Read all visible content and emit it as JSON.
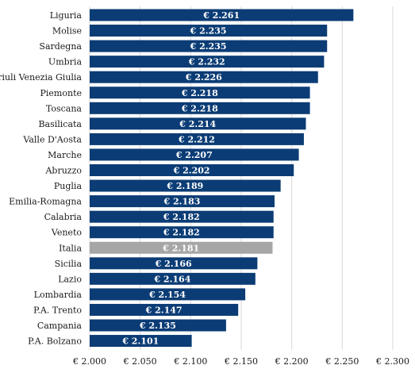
{
  "chart_data": {
    "type": "bar",
    "orientation": "horizontal",
    "title": "",
    "xlabel": "",
    "ylabel": "",
    "xlim": [
      2000,
      2300
    ],
    "grid": true,
    "bar_color": "#0b3c75",
    "highlight_color": "#a6a6a6",
    "highlight_category": "Italia",
    "x_ticks": [
      2000,
      2050,
      2100,
      2150,
      2200,
      2250,
      2300
    ],
    "x_tick_labels": [
      "€ 2.000",
      "€ 2.050",
      "€ 2.100",
      "€ 2.150",
      "€ 2.200",
      "€ 2.250",
      "€ 2.300"
    ],
    "categories": [
      "Liguria",
      "Molise",
      "Sardegna",
      "Umbria",
      "Friuli Venezia Giulia",
      "Piemonte",
      "Toscana",
      "Basilicata",
      "Valle D'Aosta",
      "Marche",
      "Abruzzo",
      "Puglia",
      "Emilia-Romagna",
      "Calabria",
      "Veneto",
      "Italia",
      "Sicilia",
      "Lazio",
      "Lombardia",
      "P.A. Trento",
      "Campania",
      "P.A. Bolzano"
    ],
    "values": [
      2261,
      2235,
      2235,
      2232,
      2226,
      2218,
      2218,
      2214,
      2212,
      2207,
      2202,
      2189,
      2183,
      2182,
      2182,
      2181,
      2166,
      2164,
      2154,
      2147,
      2135,
      2101
    ],
    "value_labels": [
      "€ 2.261",
      "€ 2.235",
      "€ 2.235",
      "€ 2.232",
      "€ 2.226",
      "€ 2.218",
      "€ 2.218",
      "€ 2.214",
      "€ 2.212",
      "€ 2.207",
      "€ 2.202",
      "€ 2.189",
      "€ 2.183",
      "€ 2.182",
      "€ 2.182",
      "€ 2.181",
      "€ 2.166",
      "€ 2.164",
      "€ 2.154",
      "€ 2.147",
      "€ 2.135",
      "€ 2.101"
    ]
  }
}
